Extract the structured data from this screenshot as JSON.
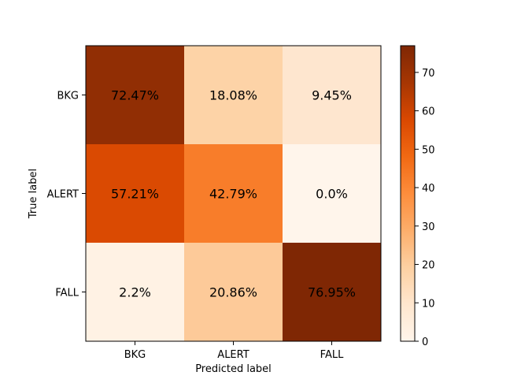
{
  "chart_data": {
    "type": "heatmap",
    "x_categories": [
      "BKG",
      "ALERT",
      "FALL"
    ],
    "y_categories": [
      "BKG",
      "ALERT",
      "FALL"
    ],
    "values": [
      [
        72.47,
        18.08,
        9.45
      ],
      [
        57.21,
        42.79,
        0.0
      ],
      [
        2.2,
        20.86,
        76.95
      ]
    ],
    "cell_labels": [
      [
        "72.47%",
        "18.08%",
        "9.45%"
      ],
      [
        "57.21%",
        "42.79%",
        "0.0%"
      ],
      [
        "2.2%",
        "20.86%",
        "76.95%"
      ]
    ],
    "xlabel": "Predicted label",
    "ylabel": "True label",
    "colorbar": {
      "min": 0,
      "max": 76.95,
      "ticks": [
        0,
        10,
        20,
        30,
        40,
        50,
        60,
        70
      ],
      "colormap": "Oranges",
      "colors": [
        "#fff5eb",
        "#fee6ce",
        "#fdd0a2",
        "#fdae6b",
        "#fd8d3c",
        "#f16913",
        "#d94801",
        "#a63603",
        "#7f2704"
      ]
    },
    "grid": false
  }
}
